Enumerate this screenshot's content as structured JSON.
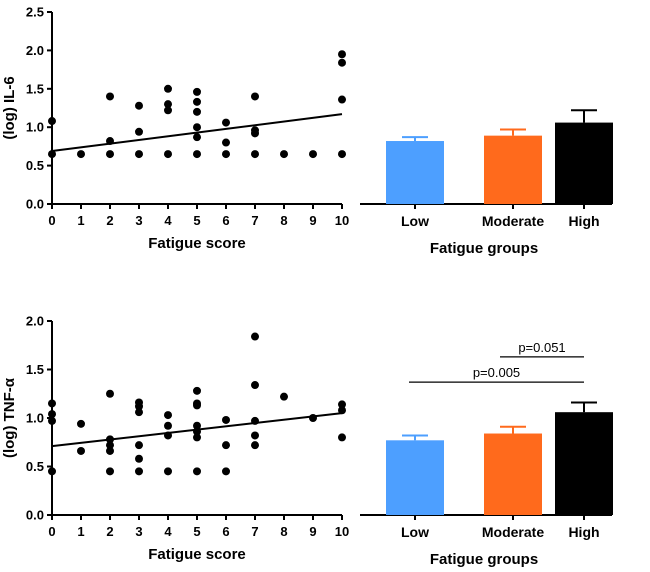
{
  "chart_data": [
    {
      "id": "il6_scatter",
      "type": "scatter",
      "xlabel": "Fatigue score",
      "ylabel": "(log) IL-6",
      "xlim": [
        0,
        10
      ],
      "ylim": [
        0,
        2.5
      ],
      "xticks": [
        0,
        1,
        2,
        3,
        4,
        5,
        6,
        7,
        8,
        9,
        10
      ],
      "yticks": [
        "0.0",
        "0.5",
        "1.0",
        "1.5",
        "2.0",
        "2.5"
      ],
      "points": [
        [
          0,
          0.65
        ],
        [
          0,
          1.08
        ],
        [
          1,
          0.65
        ],
        [
          2,
          0.65
        ],
        [
          2,
          0.82
        ],
        [
          2,
          1.4
        ],
        [
          3,
          0.65
        ],
        [
          3,
          0.94
        ],
        [
          3,
          1.28
        ],
        [
          4,
          0.65
        ],
        [
          4,
          1.22
        ],
        [
          4,
          1.3
        ],
        [
          4,
          1.5
        ],
        [
          5,
          0.65
        ],
        [
          5,
          0.87
        ],
        [
          5,
          1.0
        ],
        [
          5,
          1.2
        ],
        [
          5,
          1.33
        ],
        [
          5,
          1.46
        ],
        [
          6,
          0.65
        ],
        [
          6,
          0.8
        ],
        [
          6,
          1.06
        ],
        [
          7,
          0.65
        ],
        [
          7,
          0.92
        ],
        [
          7,
          0.96
        ],
        [
          7,
          1.4
        ],
        [
          8,
          0.65
        ],
        [
          9,
          0.65
        ],
        [
          10,
          0.65
        ],
        [
          10,
          1.36
        ],
        [
          10,
          1.84
        ],
        [
          10,
          1.95
        ]
      ],
      "fit_line": [
        [
          0,
          0.69
        ],
        [
          10,
          1.17
        ]
      ]
    },
    {
      "id": "il6_bars",
      "type": "bar",
      "xlabel": "Fatigue groups",
      "ylim": [
        0,
        2.5
      ],
      "categories": [
        "Low",
        "Moderate",
        "High"
      ],
      "values": [
        0.82,
        0.89,
        1.06
      ],
      "errors": [
        0.05,
        0.08,
        0.16
      ],
      "colors": [
        "#4d9fff",
        "#ff6a1c",
        "#000000"
      ]
    },
    {
      "id": "tnf_scatter",
      "type": "scatter",
      "xlabel": "Fatigue score",
      "ylabel": "(log) TNF-α",
      "xlim": [
        0,
        10
      ],
      "ylim": [
        0,
        2.0
      ],
      "xticks": [
        0,
        1,
        2,
        3,
        4,
        5,
        6,
        7,
        8,
        9,
        10
      ],
      "yticks": [
        "0.0",
        "0.5",
        "1.0",
        "1.5",
        "2.0"
      ],
      "points": [
        [
          0,
          0.45
        ],
        [
          0,
          0.97
        ],
        [
          0,
          1.04
        ],
        [
          0,
          1.15
        ],
        [
          1,
          0.66
        ],
        [
          1,
          0.94
        ],
        [
          2,
          0.45
        ],
        [
          2,
          0.66
        ],
        [
          2,
          0.72
        ],
        [
          2,
          0.78
        ],
        [
          2,
          1.25
        ],
        [
          3,
          0.45
        ],
        [
          3,
          0.58
        ],
        [
          3,
          0.72
        ],
        [
          3,
          1.06
        ],
        [
          3,
          1.12
        ],
        [
          3,
          1.16
        ],
        [
          4,
          0.45
        ],
        [
          4,
          0.82
        ],
        [
          4,
          0.92
        ],
        [
          4,
          1.03
        ],
        [
          5,
          0.45
        ],
        [
          5,
          0.8
        ],
        [
          5,
          0.86
        ],
        [
          5,
          0.92
        ],
        [
          5,
          1.13
        ],
        [
          5,
          1.15
        ],
        [
          5,
          1.28
        ],
        [
          6,
          0.45
        ],
        [
          6,
          0.72
        ],
        [
          6,
          0.98
        ],
        [
          7,
          0.72
        ],
        [
          7,
          0.82
        ],
        [
          7,
          0.97
        ],
        [
          7,
          1.34
        ],
        [
          7,
          1.84
        ],
        [
          8,
          1.22
        ],
        [
          9,
          1.0
        ],
        [
          10,
          0.8
        ],
        [
          10,
          1.08
        ],
        [
          10,
          1.14
        ]
      ],
      "fit_line": [
        [
          0,
          0.71
        ],
        [
          10,
          1.05
        ]
      ]
    },
    {
      "id": "tnf_bars",
      "type": "bar",
      "xlabel": "Fatigue groups",
      "ylim": [
        0,
        2.0
      ],
      "categories": [
        "Low",
        "Moderate",
        "High"
      ],
      "values": [
        0.77,
        0.84,
        1.06
      ],
      "errors": [
        0.05,
        0.07,
        0.1
      ],
      "colors": [
        "#4d9fff",
        "#ff6a1c",
        "#000000"
      ],
      "significance": [
        {
          "from": "Moderate",
          "to": "High",
          "level": 1.63,
          "label": "p=0.051"
        },
        {
          "from": "Low",
          "to": "High",
          "level": 1.37,
          "label": "p=0.005"
        }
      ]
    }
  ]
}
